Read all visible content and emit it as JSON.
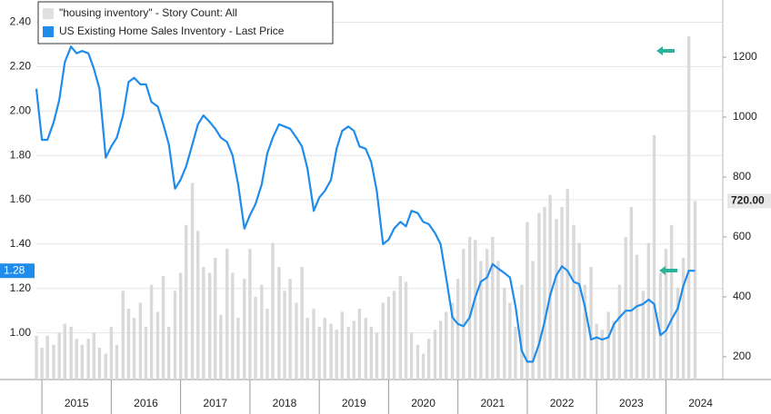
{
  "chart_data": {
    "type": "combo",
    "x": [
      2014.92,
      2015.0,
      2015.08,
      2015.17,
      2015.25,
      2015.33,
      2015.42,
      2015.5,
      2015.58,
      2015.67,
      2015.75,
      2015.83,
      2015.92,
      2016.0,
      2016.08,
      2016.17,
      2016.25,
      2016.33,
      2016.42,
      2016.5,
      2016.58,
      2016.67,
      2016.75,
      2016.83,
      2016.92,
      2017.0,
      2017.08,
      2017.17,
      2017.25,
      2017.33,
      2017.42,
      2017.5,
      2017.58,
      2017.67,
      2017.75,
      2017.83,
      2017.92,
      2018.0,
      2018.08,
      2018.17,
      2018.25,
      2018.33,
      2018.42,
      2018.5,
      2018.58,
      2018.67,
      2018.75,
      2018.83,
      2018.92,
      2019.0,
      2019.08,
      2019.17,
      2019.25,
      2019.33,
      2019.42,
      2019.5,
      2019.58,
      2019.67,
      2019.75,
      2019.83,
      2019.92,
      2020.0,
      2020.08,
      2020.17,
      2020.25,
      2020.33,
      2020.42,
      2020.5,
      2020.58,
      2020.67,
      2020.75,
      2020.83,
      2020.92,
      2021.0,
      2021.08,
      2021.17,
      2021.25,
      2021.33,
      2021.42,
      2021.5,
      2021.58,
      2021.67,
      2021.75,
      2021.83,
      2021.92,
      2022.0,
      2022.08,
      2022.17,
      2022.25,
      2022.33,
      2022.42,
      2022.5,
      2022.58,
      2022.67,
      2022.75,
      2022.83,
      2022.92,
      2023.0,
      2023.08,
      2023.17,
      2023.25,
      2023.33,
      2023.42,
      2023.5,
      2023.58,
      2023.67,
      2023.75,
      2023.83,
      2023.92,
      2024.0,
      2024.08,
      2024.17,
      2024.25,
      2024.33,
      2024.42
    ],
    "series": [
      {
        "name": "\"housing inventory\" - Story Count: All",
        "type": "bar",
        "axis": "y2",
        "color": "#d9d9d9",
        "last_label": "720.00",
        "values": [
          270,
          230,
          270,
          240,
          280,
          310,
          300,
          260,
          240,
          260,
          280,
          230,
          210,
          300,
          240,
          420,
          360,
          330,
          380,
          300,
          440,
          350,
          470,
          300,
          420,
          480,
          640,
          780,
          620,
          500,
          480,
          530,
          340,
          560,
          480,
          330,
          460,
          560,
          400,
          440,
          360,
          580,
          500,
          420,
          460,
          380,
          500,
          330,
          360,
          300,
          330,
          310,
          290,
          350,
          300,
          320,
          360,
          330,
          300,
          280,
          380,
          400,
          420,
          470,
          450,
          280,
          240,
          210,
          260,
          290,
          320,
          350,
          380,
          460,
          560,
          600,
          590,
          520,
          560,
          600,
          520,
          430,
          380,
          300,
          440,
          650,
          520,
          680,
          700,
          740,
          660,
          700,
          760,
          640,
          580,
          440,
          500,
          310,
          290,
          350,
          320,
          440,
          600,
          700,
          540,
          420,
          580,
          940,
          480,
          560,
          640,
          430,
          530,
          1270,
          720
        ]
      },
      {
        "name": "US Existing Home Sales Inventory - Last Price",
        "type": "line",
        "color": "#1f8ceb",
        "last_label": "1.28",
        "values": [
          2.1,
          1.87,
          1.87,
          1.95,
          2.05,
          2.22,
          2.29,
          2.26,
          2.27,
          2.26,
          2.19,
          2.1,
          1.79,
          1.84,
          1.88,
          1.98,
          2.13,
          2.15,
          2.12,
          2.12,
          2.04,
          2.02,
          1.94,
          1.85,
          1.65,
          1.69,
          1.75,
          1.85,
          1.94,
          1.98,
          1.95,
          1.92,
          1.88,
          1.86,
          1.8,
          1.67,
          1.47,
          1.53,
          1.58,
          1.67,
          1.81,
          1.88,
          1.94,
          1.93,
          1.92,
          1.88,
          1.84,
          1.74,
          1.55,
          1.61,
          1.64,
          1.69,
          1.83,
          1.91,
          1.93,
          1.91,
          1.84,
          1.83,
          1.77,
          1.64,
          1.4,
          1.42,
          1.47,
          1.5,
          1.48,
          1.55,
          1.54,
          1.5,
          1.49,
          1.45,
          1.4,
          1.25,
          1.07,
          1.04,
          1.03,
          1.07,
          1.16,
          1.23,
          1.25,
          1.31,
          1.29,
          1.27,
          1.25,
          1.12,
          0.92,
          0.87,
          0.87,
          0.95,
          1.05,
          1.17,
          1.26,
          1.3,
          1.28,
          1.23,
          1.22,
          1.12,
          0.97,
          0.98,
          0.97,
          0.98,
          1.04,
          1.07,
          1.1,
          1.1,
          1.12,
          1.13,
          1.15,
          1.13,
          0.99,
          1.01,
          1.06,
          1.11,
          1.21,
          1.28,
          1.28
        ]
      }
    ],
    "xlim": [
      2014.92,
      2024.82
    ],
    "xticks": [
      {
        "value": 2015.5,
        "label": "2015"
      },
      {
        "value": 2016.5,
        "label": "2016"
      },
      {
        "value": 2017.5,
        "label": "2017"
      },
      {
        "value": 2018.5,
        "label": "2018"
      },
      {
        "value": 2019.5,
        "label": "2019"
      },
      {
        "value": 2020.5,
        "label": "2020"
      },
      {
        "value": 2021.5,
        "label": "2021"
      },
      {
        "value": 2022.5,
        "label": "2022"
      },
      {
        "value": 2023.5,
        "label": "2023"
      },
      {
        "value": 2024.5,
        "label": "2024"
      }
    ],
    "ylim": [
      0.79,
      2.5
    ],
    "yticks": [
      {
        "value": 1.0,
        "label": "1.00"
      },
      {
        "value": 1.2,
        "label": "1.20"
      },
      {
        "value": 1.4,
        "label": "1.40"
      },
      {
        "value": 1.6,
        "label": "1.60"
      },
      {
        "value": 1.8,
        "label": "1.80"
      },
      {
        "value": 2.0,
        "label": "2.00"
      },
      {
        "value": 2.2,
        "label": "2.20"
      },
      {
        "value": 2.4,
        "label": "2.40"
      }
    ],
    "y2lim": [
      124,
      1391
    ],
    "y2ticks": [
      200,
      400,
      600,
      800,
      1000,
      1200
    ],
    "grid": true,
    "legend": "upper left"
  }
}
